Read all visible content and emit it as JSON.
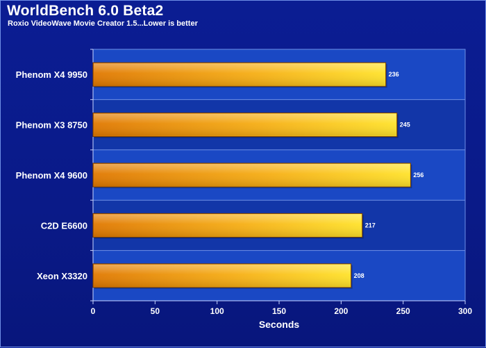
{
  "title": "WorldBench 6.0 Beta2",
  "subtitle": "Roxio VideoWave Movie Creator 1.5...Lower is better",
  "colors": {
    "background": "#0a1a8c",
    "plot_band_light": "#1a48c4",
    "plot_band_dark": "#1236a8",
    "bar_start": "#e07800",
    "bar_end": "#ffe22a",
    "bar_edge": "#7a3e00",
    "text": "#ffffff"
  },
  "chart_data": {
    "type": "bar",
    "orientation": "horizontal",
    "categories": [
      "Phenom X4 9950",
      "Phenom X3 8750",
      "Phenom X4 9600",
      "C2D E6600",
      "Xeon X3320"
    ],
    "series": [
      {
        "values": [
          236,
          245,
          256,
          217,
          208
        ]
      }
    ],
    "value_labels": [
      "236",
      "245",
      "256",
      "217",
      "208"
    ],
    "title": "WorldBench 6.0 Beta2",
    "subtitle": "Roxio VideoWave Movie Creator 1.5...Lower is better",
    "xlabel": "Seconds",
    "ylabel": "",
    "xlim": [
      0,
      300
    ],
    "xticks": [
      0,
      50,
      100,
      150,
      200,
      250,
      300
    ],
    "xtick_labels": [
      "0",
      "50",
      "100",
      "150",
      "200",
      "250",
      "300"
    ],
    "grid": false,
    "legend": "none"
  }
}
